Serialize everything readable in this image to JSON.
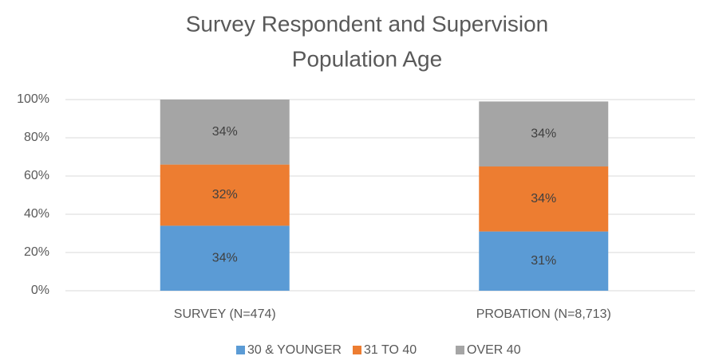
{
  "chart_data": {
    "type": "stacked_bar",
    "title": [
      "Survey Respondent and Supervision",
      "Population Age"
    ],
    "categories": [
      "SURVEY (N=474)",
      "PROBATION (N=8,713)"
    ],
    "series": [
      {
        "name": "30 & YOUNGER",
        "color": "#5b9bd5",
        "values": [
          34,
          31
        ],
        "value_labels": [
          "34%",
          "31%"
        ]
      },
      {
        "name": "31 TO 40",
        "color": "#ed7d31",
        "values": [
          32,
          34
        ],
        "value_labels": [
          "32%",
          "34%"
        ]
      },
      {
        "name": "OVER 40",
        "color": "#a5a5a5",
        "values": [
          34,
          34
        ],
        "value_labels": [
          "34%",
          "34%"
        ]
      }
    ],
    "ylim": [
      0,
      100
    ],
    "yticks": [
      {
        "value": 0,
        "label": "0%"
      },
      {
        "value": 20,
        "label": "20%"
      },
      {
        "value": 40,
        "label": "40%"
      },
      {
        "value": 60,
        "label": "60%"
      },
      {
        "value": 80,
        "label": "80%"
      },
      {
        "value": 100,
        "label": "100%"
      }
    ],
    "grid": true,
    "legend": "bottom"
  }
}
